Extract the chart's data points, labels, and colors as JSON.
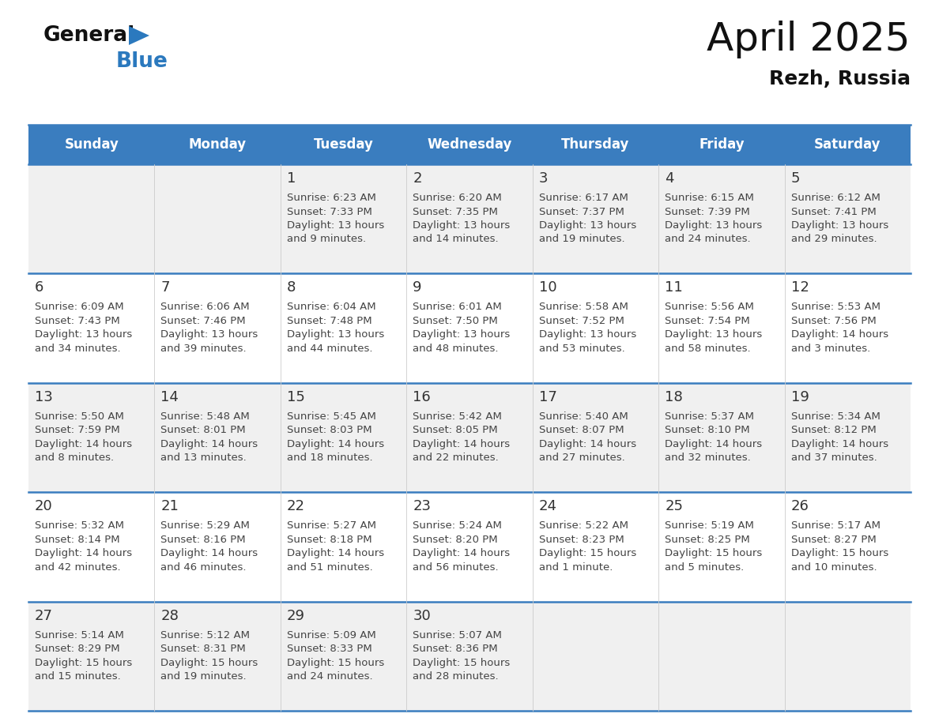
{
  "title": "April 2025",
  "subtitle": "Rezh, Russia",
  "header_color": "#3A7DBF",
  "header_text_color": "#FFFFFF",
  "bg_color": "#FFFFFF",
  "row_bg_colors": [
    "#F0F0F0",
    "#FFFFFF"
  ],
  "grid_line_color": "#3A7DBF",
  "day_number_color": "#333333",
  "text_color": "#444444",
  "days_of_week": [
    "Sunday",
    "Monday",
    "Tuesday",
    "Wednesday",
    "Thursday",
    "Friday",
    "Saturday"
  ],
  "logo_general_color": "#111111",
  "logo_blue_color": "#2B79BE",
  "logo_triangle_color": "#2B79BE",
  "calendar": [
    [
      {
        "day": "",
        "lines": []
      },
      {
        "day": "",
        "lines": []
      },
      {
        "day": "1",
        "lines": [
          "Sunrise: 6:23 AM",
          "Sunset: 7:33 PM",
          "Daylight: 13 hours",
          "and 9 minutes."
        ]
      },
      {
        "day": "2",
        "lines": [
          "Sunrise: 6:20 AM",
          "Sunset: 7:35 PM",
          "Daylight: 13 hours",
          "and 14 minutes."
        ]
      },
      {
        "day": "3",
        "lines": [
          "Sunrise: 6:17 AM",
          "Sunset: 7:37 PM",
          "Daylight: 13 hours",
          "and 19 minutes."
        ]
      },
      {
        "day": "4",
        "lines": [
          "Sunrise: 6:15 AM",
          "Sunset: 7:39 PM",
          "Daylight: 13 hours",
          "and 24 minutes."
        ]
      },
      {
        "day": "5",
        "lines": [
          "Sunrise: 6:12 AM",
          "Sunset: 7:41 PM",
          "Daylight: 13 hours",
          "and 29 minutes."
        ]
      }
    ],
    [
      {
        "day": "6",
        "lines": [
          "Sunrise: 6:09 AM",
          "Sunset: 7:43 PM",
          "Daylight: 13 hours",
          "and 34 minutes."
        ]
      },
      {
        "day": "7",
        "lines": [
          "Sunrise: 6:06 AM",
          "Sunset: 7:46 PM",
          "Daylight: 13 hours",
          "and 39 minutes."
        ]
      },
      {
        "day": "8",
        "lines": [
          "Sunrise: 6:04 AM",
          "Sunset: 7:48 PM",
          "Daylight: 13 hours",
          "and 44 minutes."
        ]
      },
      {
        "day": "9",
        "lines": [
          "Sunrise: 6:01 AM",
          "Sunset: 7:50 PM",
          "Daylight: 13 hours",
          "and 48 minutes."
        ]
      },
      {
        "day": "10",
        "lines": [
          "Sunrise: 5:58 AM",
          "Sunset: 7:52 PM",
          "Daylight: 13 hours",
          "and 53 minutes."
        ]
      },
      {
        "day": "11",
        "lines": [
          "Sunrise: 5:56 AM",
          "Sunset: 7:54 PM",
          "Daylight: 13 hours",
          "and 58 minutes."
        ]
      },
      {
        "day": "12",
        "lines": [
          "Sunrise: 5:53 AM",
          "Sunset: 7:56 PM",
          "Daylight: 14 hours",
          "and 3 minutes."
        ]
      }
    ],
    [
      {
        "day": "13",
        "lines": [
          "Sunrise: 5:50 AM",
          "Sunset: 7:59 PM",
          "Daylight: 14 hours",
          "and 8 minutes."
        ]
      },
      {
        "day": "14",
        "lines": [
          "Sunrise: 5:48 AM",
          "Sunset: 8:01 PM",
          "Daylight: 14 hours",
          "and 13 minutes."
        ]
      },
      {
        "day": "15",
        "lines": [
          "Sunrise: 5:45 AM",
          "Sunset: 8:03 PM",
          "Daylight: 14 hours",
          "and 18 minutes."
        ]
      },
      {
        "day": "16",
        "lines": [
          "Sunrise: 5:42 AM",
          "Sunset: 8:05 PM",
          "Daylight: 14 hours",
          "and 22 minutes."
        ]
      },
      {
        "day": "17",
        "lines": [
          "Sunrise: 5:40 AM",
          "Sunset: 8:07 PM",
          "Daylight: 14 hours",
          "and 27 minutes."
        ]
      },
      {
        "day": "18",
        "lines": [
          "Sunrise: 5:37 AM",
          "Sunset: 8:10 PM",
          "Daylight: 14 hours",
          "and 32 minutes."
        ]
      },
      {
        "day": "19",
        "lines": [
          "Sunrise: 5:34 AM",
          "Sunset: 8:12 PM",
          "Daylight: 14 hours",
          "and 37 minutes."
        ]
      }
    ],
    [
      {
        "day": "20",
        "lines": [
          "Sunrise: 5:32 AM",
          "Sunset: 8:14 PM",
          "Daylight: 14 hours",
          "and 42 minutes."
        ]
      },
      {
        "day": "21",
        "lines": [
          "Sunrise: 5:29 AM",
          "Sunset: 8:16 PM",
          "Daylight: 14 hours",
          "and 46 minutes."
        ]
      },
      {
        "day": "22",
        "lines": [
          "Sunrise: 5:27 AM",
          "Sunset: 8:18 PM",
          "Daylight: 14 hours",
          "and 51 minutes."
        ]
      },
      {
        "day": "23",
        "lines": [
          "Sunrise: 5:24 AM",
          "Sunset: 8:20 PM",
          "Daylight: 14 hours",
          "and 56 minutes."
        ]
      },
      {
        "day": "24",
        "lines": [
          "Sunrise: 5:22 AM",
          "Sunset: 8:23 PM",
          "Daylight: 15 hours",
          "and 1 minute."
        ]
      },
      {
        "day": "25",
        "lines": [
          "Sunrise: 5:19 AM",
          "Sunset: 8:25 PM",
          "Daylight: 15 hours",
          "and 5 minutes."
        ]
      },
      {
        "day": "26",
        "lines": [
          "Sunrise: 5:17 AM",
          "Sunset: 8:27 PM",
          "Daylight: 15 hours",
          "and 10 minutes."
        ]
      }
    ],
    [
      {
        "day": "27",
        "lines": [
          "Sunrise: 5:14 AM",
          "Sunset: 8:29 PM",
          "Daylight: 15 hours",
          "and 15 minutes."
        ]
      },
      {
        "day": "28",
        "lines": [
          "Sunrise: 5:12 AM",
          "Sunset: 8:31 PM",
          "Daylight: 15 hours",
          "and 19 minutes."
        ]
      },
      {
        "day": "29",
        "lines": [
          "Sunrise: 5:09 AM",
          "Sunset: 8:33 PM",
          "Daylight: 15 hours",
          "and 24 minutes."
        ]
      },
      {
        "day": "30",
        "lines": [
          "Sunrise: 5:07 AM",
          "Sunset: 8:36 PM",
          "Daylight: 15 hours",
          "and 28 minutes."
        ]
      },
      {
        "day": "",
        "lines": []
      },
      {
        "day": "",
        "lines": []
      },
      {
        "day": "",
        "lines": []
      }
    ]
  ]
}
